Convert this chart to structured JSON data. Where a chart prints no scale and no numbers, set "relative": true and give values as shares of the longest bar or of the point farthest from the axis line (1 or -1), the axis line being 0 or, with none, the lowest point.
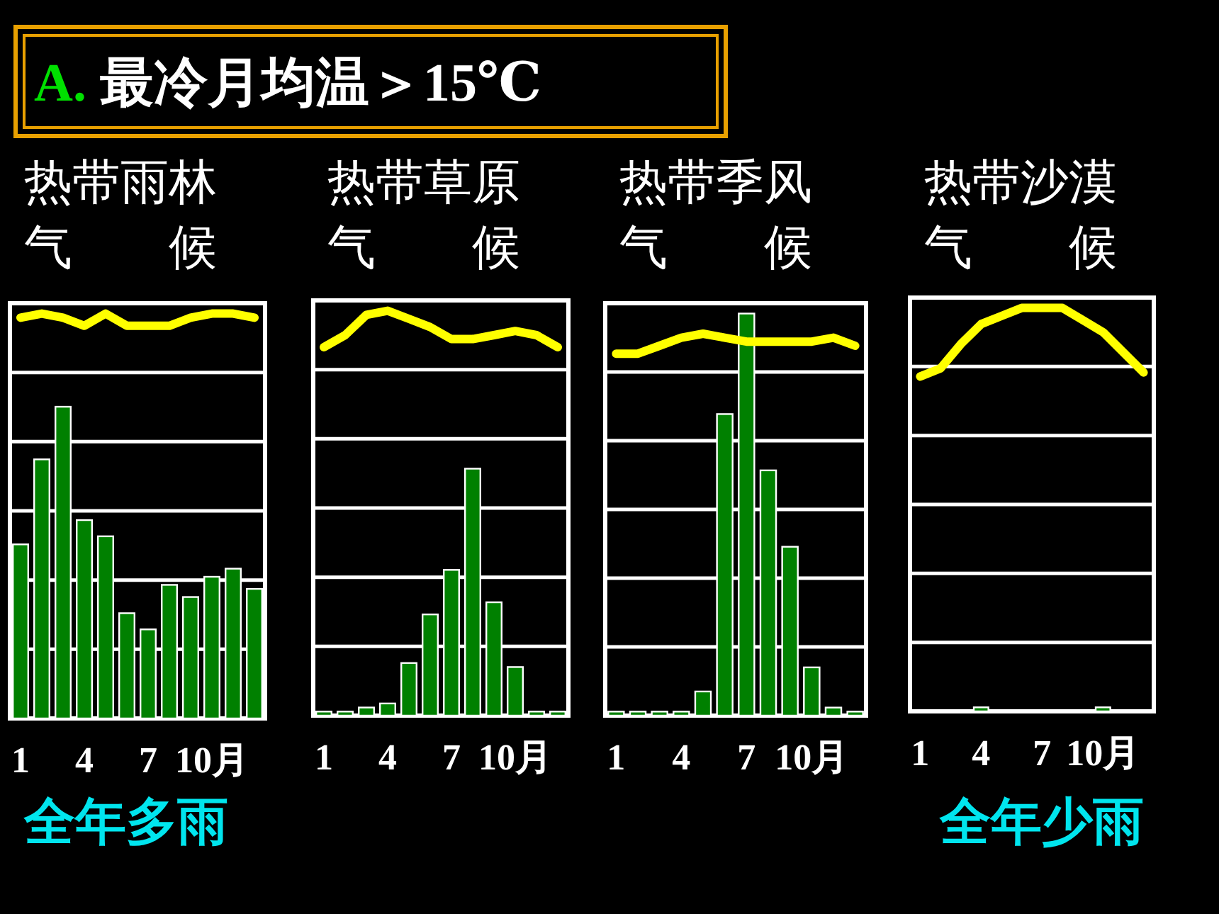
{
  "chart_data": [
    {
      "type": "other",
      "title": "A. 最冷月均温＞15℃"
    },
    {
      "type": "bar",
      "title": "热带雨林",
      "subtitle": "气候",
      "categories": [
        "1",
        null,
        null,
        "4",
        null,
        null,
        "7",
        null,
        null,
        "10月",
        null,
        null
      ],
      "relative": true,
      "grid": true,
      "annotations": [
        "全年多雨"
      ],
      "series": [
        {
          "type": "bar",
          "color": "#008000",
          "values": [
            0.43,
            0.64,
            0.77,
            0.49,
            0.45,
            0.26,
            0.22,
            0.33,
            0.3,
            0.35,
            0.37,
            0.32
          ]
        },
        {
          "type": "line",
          "color": "#ffff00",
          "values": [
            0.99,
            1.0,
            0.99,
            0.97,
            1.0,
            0.97,
            0.97,
            0.97,
            0.99,
            1.0,
            1.0,
            0.99
          ]
        }
      ]
    },
    {
      "type": "bar",
      "title": "热带草原",
      "subtitle": "气候",
      "categories": [
        "1",
        null,
        null,
        "4",
        null,
        null,
        "7",
        null,
        null,
        "10月",
        null,
        null
      ],
      "relative": true,
      "grid": true,
      "series": [
        {
          "type": "bar",
          "color": "#008000",
          "values": [
            0.01,
            0.01,
            0.02,
            0.03,
            0.13,
            0.25,
            0.36,
            0.61,
            0.28,
            0.12,
            0.01,
            0.01
          ]
        },
        {
          "type": "line",
          "color": "#ffff00",
          "values": [
            0.91,
            0.94,
            0.99,
            1.0,
            0.98,
            0.96,
            0.93,
            0.93,
            0.94,
            0.95,
            0.94,
            0.91
          ]
        }
      ]
    },
    {
      "type": "bar",
      "title": "热带季风",
      "subtitle": "气候",
      "categories": [
        "1",
        null,
        null,
        "4",
        null,
        null,
        "7",
        null,
        null,
        "10月",
        null,
        null
      ],
      "relative": true,
      "grid": true,
      "series": [
        {
          "type": "bar",
          "color": "#008000",
          "values": [
            0.01,
            0.01,
            0.01,
            0.01,
            0.06,
            0.75,
            1.0,
            0.61,
            0.42,
            0.12,
            0.02,
            0.01
          ]
        },
        {
          "type": "line",
          "color": "#ffff00",
          "values": [
            0.9,
            0.9,
            0.92,
            0.94,
            0.95,
            0.94,
            0.93,
            0.93,
            0.93,
            0.93,
            0.94,
            0.92
          ]
        }
      ]
    },
    {
      "type": "bar",
      "title": "热带沙漠",
      "subtitle": "气候",
      "categories": [
        "1",
        null,
        null,
        "4",
        null,
        null,
        "7",
        null,
        null,
        "10月",
        null,
        null
      ],
      "relative": true,
      "grid": true,
      "annotations": [
        "全年少雨"
      ],
      "series": [
        {
          "type": "bar",
          "color": "#008000",
          "values": [
            0,
            0,
            0,
            0.01,
            0,
            0,
            0,
            0,
            0,
            0.01,
            0,
            0
          ]
        },
        {
          "type": "line",
          "color": "#ffff00",
          "values": [
            0.83,
            0.85,
            0.91,
            0.96,
            0.98,
            1.0,
            1.0,
            1.0,
            0.97,
            0.94,
            0.89,
            0.84
          ]
        }
      ]
    }
  ]
}
